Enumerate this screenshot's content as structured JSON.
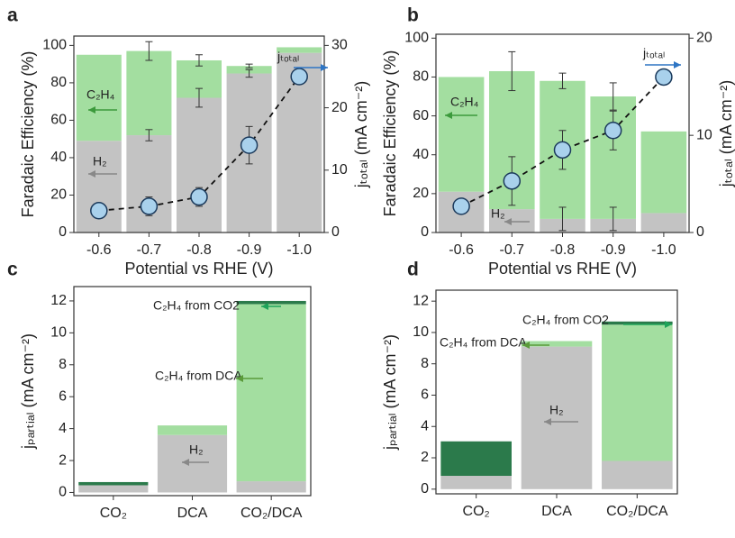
{
  "chart_data": [
    {
      "type": "bar",
      "stacked": true,
      "panel": "a",
      "x_label": "Potential vs RHE (V)",
      "y_label": "Faradaic Efficiency (%)",
      "y2_label": "jₜₒₜₐₗ (mA cm⁻²)",
      "categories": [
        "-0.6",
        "-0.7",
        "-0.8",
        "-0.9",
        "-1.0"
      ],
      "series": [
        {
          "name": "H₂",
          "color": "#c3c3c3",
          "values": [
            49,
            52,
            72,
            85,
            96
          ],
          "errors": [
            null,
            3,
            5,
            2,
            null
          ]
        },
        {
          "name": "C₂H₄",
          "color": "#a3dea0",
          "values": [
            46,
            45,
            20,
            4,
            3
          ],
          "errors": [
            null,
            5,
            3,
            1,
            null
          ]
        },
        {
          "name": "jₜₒₜₐₗ",
          "type": "line",
          "axis": "y2",
          "color": "#a9d1ec",
          "values": [
            3.5,
            4.2,
            5.7,
            14,
            25
          ],
          "errors": [
            null,
            1.5,
            1.5,
            3,
            null
          ]
        }
      ],
      "ylim": [
        0,
        105
      ],
      "yticks": [
        0,
        20,
        40,
        60,
        80,
        100
      ],
      "y2lim": [
        0,
        31.5
      ],
      "y2ticks": [
        0,
        10,
        20,
        30
      ]
    },
    {
      "type": "bar",
      "stacked": true,
      "panel": "b",
      "x_label": "Potential vs RHE (V)",
      "y_label": "Faradaic Efficiency (%)",
      "y2_label": "jₜₒₜₐₗ (mA cm⁻²)",
      "categories": [
        "-0.6",
        "-0.7",
        "-0.8",
        "-0.9",
        "-1.0"
      ],
      "series": [
        {
          "name": "H₂",
          "color": "#c3c3c3",
          "values": [
            21,
            12,
            7,
            7,
            10
          ],
          "errors": [
            null,
            null,
            6,
            6,
            null
          ]
        },
        {
          "name": "C₂H₄",
          "color": "#a3dea0",
          "values": [
            59,
            71,
            71,
            63,
            42
          ],
          "errors": [
            null,
            10,
            4,
            7,
            null
          ]
        },
        {
          "name": "jₜₒₜₐₗ",
          "type": "line",
          "axis": "y2",
          "color": "#a9d1ec",
          "values": [
            2.7,
            5.3,
            8.5,
            10.5,
            16
          ],
          "errors": [
            null,
            2.5,
            2,
            2,
            null
          ]
        }
      ],
      "ylim": [
        0,
        102
      ],
      "yticks": [
        0,
        20,
        40,
        60,
        80,
        100
      ],
      "y2lim": [
        0,
        20.4
      ],
      "y2ticks": [
        0,
        10,
        20
      ]
    },
    {
      "type": "bar",
      "stacked": true,
      "panel": "c",
      "y_label": "jₚₐᵣₜᵢₐₗ (mA cm⁻²)",
      "categories": [
        "CO₂",
        "DCA",
        "CO₂/DCA"
      ],
      "series": [
        {
          "name": "H₂",
          "color": "#c3c3c3",
          "values": [
            0.45,
            3.6,
            0.7
          ]
        },
        {
          "name": "C₂H₄ from DCA",
          "color": "#a3dea0",
          "values": [
            0,
            0.6,
            11.1
          ]
        },
        {
          "name": "C₂H₄ from CO2",
          "color": "#2b7a4b",
          "values": [
            0.2,
            0,
            0.2
          ]
        }
      ],
      "ylim": [
        -0.2,
        12.9
      ],
      "yticks": [
        0,
        2,
        4,
        6,
        8,
        10,
        12
      ]
    },
    {
      "type": "bar",
      "stacked": true,
      "panel": "d",
      "y_label": "jₚₐᵣₜᵢₐₗ (mA cm⁻²)",
      "categories": [
        "CO₂",
        "DCA",
        "CO₂/DCA"
      ],
      "series": [
        {
          "name": "H₂",
          "color": "#c3c3c3",
          "values": [
            0.85,
            9.1,
            1.8
          ]
        },
        {
          "name": "C₂H₄ from DCA",
          "color": "#a3dea0",
          "values": [
            0,
            0.35,
            8.7
          ]
        },
        {
          "name": "C₂H₄ from CO2",
          "color": "#2b7a4b",
          "values": [
            2.2,
            0,
            0.2
          ]
        }
      ],
      "ylim": [
        -0.3,
        12.7
      ],
      "yticks": [
        0,
        2,
        4,
        6,
        8,
        10,
        12
      ]
    }
  ]
}
